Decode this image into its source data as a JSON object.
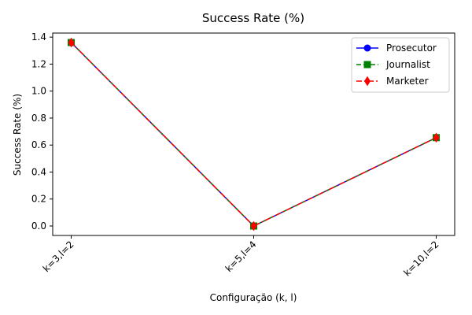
{
  "chart_data": {
    "type": "line",
    "title": "Success Rate (%)",
    "xlabel": "Configuração (k, l)",
    "ylabel": "Success Rate (%)",
    "categories": [
      "k=3,l=2",
      "k=5,l=4",
      "k=10,l=2"
    ],
    "yticks": [
      "0.0",
      "0.2",
      "0.4",
      "0.6",
      "0.8",
      "1.0",
      "1.2",
      "1.4"
    ],
    "ylim": [
      -0.07,
      1.43
    ],
    "grid": false,
    "legend_position": "top-right",
    "series": [
      {
        "name": "Prosecutor",
        "values": [
          1.36,
          0.0,
          0.655
        ],
        "color": "#0000ff",
        "marker": "circle",
        "dash": "solid"
      },
      {
        "name": "Journalist",
        "values": [
          1.36,
          0.0,
          0.655
        ],
        "color": "#008000",
        "marker": "square",
        "dash": "dashed"
      },
      {
        "name": "Marketer",
        "values": [
          1.36,
          0.0,
          0.655
        ],
        "color": "#ff0000",
        "marker": "diamond",
        "dash": "dashdot"
      }
    ]
  }
}
